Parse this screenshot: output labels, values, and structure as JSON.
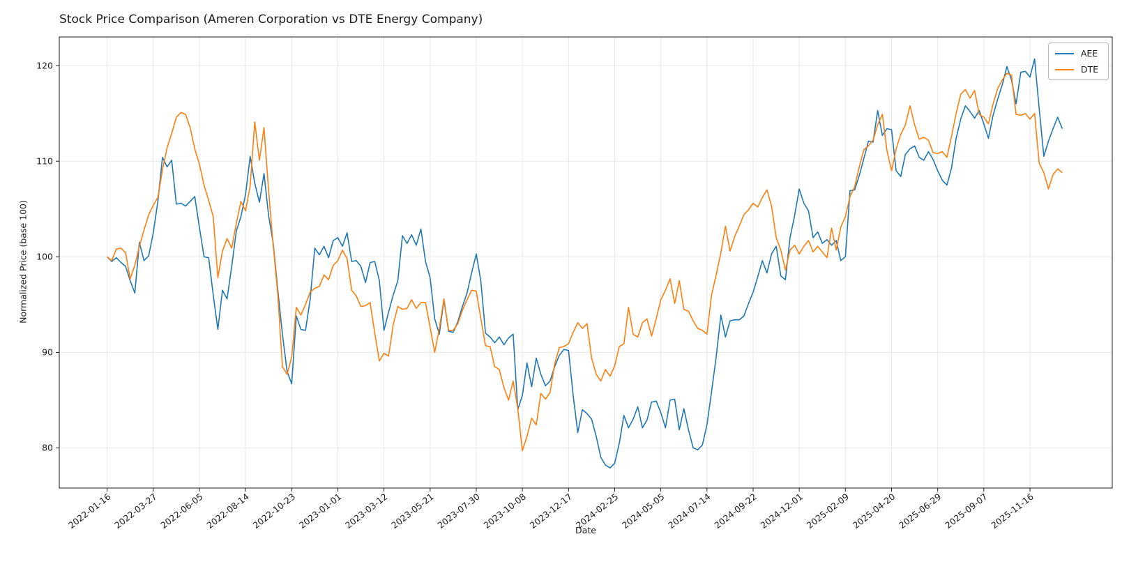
{
  "figure": {
    "title": "Stock Price Comparison (Ameren Corporation vs DTE Energy Company)",
    "xlabel": "Date",
    "ylabel": "Normalized Price (base 100)"
  },
  "chart_data": {
    "type": "line",
    "title": "Stock Price Comparison (Ameren Corporation vs DTE Energy Company)",
    "xlabel": "Date",
    "ylabel": "Normalized Price (base 100)",
    "x_start": "2022-01-16",
    "x_step_days": 7,
    "n_points": 208,
    "ylim": [
      75.8,
      123.0
    ],
    "y_tick_labels": [
      "80",
      "90",
      "100",
      "110",
      "120"
    ],
    "y_ticks": [
      80,
      90,
      100,
      110,
      120
    ],
    "x_tick_indices": [
      0,
      10,
      20,
      30,
      40,
      50,
      60,
      70,
      80,
      90,
      100,
      110,
      120,
      130,
      140,
      150,
      160,
      170,
      180,
      190,
      200
    ],
    "x_tick_labels": [
      "2022-01-16",
      "2022-03-27",
      "2022-06-05",
      "2022-08-14",
      "2022-10-23",
      "2023-01-01",
      "2023-03-12",
      "2023-05-21",
      "2023-07-30",
      "2023-10-08",
      "2023-12-17",
      "2024-02-25",
      "2024-05-05",
      "2024-07-14",
      "2024-09-22",
      "2024-12-01",
      "2025-02-09",
      "2025-04-20",
      "2025-06-29",
      "2025-09-07",
      "2025-11-16"
    ],
    "grid": true,
    "grid_color": "#e8e8e8",
    "legend_position": "upper right",
    "series": [
      {
        "name": "AEE",
        "color": "#1f77b4",
        "values": [
          100.0,
          99.5,
          99.9,
          99.4,
          99.0,
          97.5,
          96.2,
          101.5,
          99.6,
          100.1,
          102.5,
          105.8,
          110.4,
          109.4,
          110.1,
          105.5,
          105.6,
          105.3,
          105.8,
          106.3,
          103.1,
          100.0,
          99.9,
          96.0,
          92.4,
          96.5,
          95.6,
          99.0,
          102.7,
          104.2,
          106.5,
          110.5,
          107.7,
          105.7,
          108.7,
          104.3,
          101.4,
          96.5,
          91.9,
          88.0,
          86.7,
          93.8,
          92.4,
          92.3,
          95.5,
          100.9,
          100.2,
          101.1,
          99.9,
          101.7,
          102.0,
          101.1,
          102.5,
          99.5,
          99.6,
          99.0,
          97.3,
          99.4,
          99.5,
          97.5,
          92.3,
          94.2,
          96.0,
          97.5,
          102.2,
          101.4,
          102.3,
          101.2,
          102.9,
          99.5,
          97.8,
          93.5,
          91.9,
          95.5,
          92.2,
          92.1,
          93.2,
          94.8,
          96.2,
          98.3,
          100.3,
          97.4,
          92.0,
          91.6,
          91.0,
          91.6,
          90.8,
          91.5,
          91.9,
          84.0,
          85.5,
          88.9,
          86.4,
          89.4,
          87.7,
          86.5,
          87.0,
          88.5,
          89.7,
          90.3,
          90.2,
          85.5,
          81.6,
          84.0,
          83.6,
          83.0,
          81.2,
          79.0,
          78.2,
          77.9,
          78.4,
          80.5,
          83.4,
          82.1,
          83.0,
          84.3,
          82.1,
          82.9,
          84.8,
          84.9,
          83.7,
          82.1,
          85.0,
          85.1,
          81.9,
          84.1,
          81.9,
          80.0,
          79.8,
          80.3,
          82.4,
          85.9,
          89.5,
          93.9,
          91.6,
          93.3,
          93.4,
          93.4,
          93.8,
          95.1,
          96.3,
          97.9,
          99.6,
          98.3,
          100.3,
          101.1,
          98.0,
          97.6,
          102.0,
          104.3,
          107.1,
          105.6,
          104.8,
          102.0,
          102.6,
          101.4,
          101.8,
          101.2,
          101.7,
          99.6,
          100.0,
          106.9,
          107.0,
          108.5,
          110.3,
          112.1,
          112.0,
          115.3,
          112.7,
          113.4,
          113.3,
          109.0,
          108.4,
          110.7,
          111.3,
          111.6,
          110.4,
          110.1,
          111.0,
          110.2,
          109.0,
          108.0,
          107.5,
          109.3,
          112.4,
          114.4,
          115.8,
          115.2,
          114.5,
          115.3,
          113.9,
          112.4,
          114.8,
          116.5,
          118.0,
          119.9,
          118.5,
          116.0,
          119.3,
          119.4,
          118.8,
          120.7,
          115.5,
          110.5,
          112.1,
          113.4,
          114.6,
          113.4
        ]
      },
      {
        "name": "DTE",
        "color": "#ff7f0e",
        "values": [
          100.0,
          99.6,
          100.8,
          100.9,
          100.4,
          97.7,
          99.1,
          101.1,
          102.8,
          104.4,
          105.4,
          106.2,
          109.1,
          111.4,
          112.9,
          114.6,
          115.1,
          114.9,
          113.5,
          111.3,
          109.7,
          107.5,
          105.9,
          104.2,
          97.8,
          100.6,
          101.9,
          100.9,
          103.5,
          105.8,
          104.8,
          107.4,
          114.1,
          110.1,
          113.5,
          106.9,
          101.2,
          96.0,
          88.5,
          87.7,
          89.5,
          94.7,
          93.9,
          95.0,
          96.3,
          96.7,
          96.9,
          98.1,
          97.6,
          99.1,
          99.6,
          100.7,
          99.8,
          96.5,
          95.9,
          94.8,
          94.9,
          95.2,
          92.0,
          89.1,
          89.9,
          89.6,
          92.9,
          94.8,
          94.5,
          94.6,
          95.5,
          94.6,
          95.2,
          95.2,
          92.6,
          90.0,
          92.5,
          95.6,
          92.3,
          92.3,
          93.0,
          94.4,
          95.5,
          96.5,
          96.4,
          93.5,
          90.7,
          90.6,
          88.5,
          88.2,
          86.3,
          85.0,
          87.0,
          84.1,
          79.7,
          81.2,
          83.1,
          82.4,
          85.7,
          85.1,
          85.8,
          88.8,
          90.5,
          90.6,
          90.9,
          92.1,
          93.1,
          92.5,
          93.0,
          89.4,
          87.7,
          87.0,
          88.2,
          87.5,
          88.6,
          90.6,
          90.9,
          94.7,
          91.9,
          91.6,
          93.1,
          93.5,
          91.7,
          93.5,
          95.5,
          96.5,
          97.7,
          95.1,
          97.5,
          94.5,
          94.3,
          93.3,
          92.5,
          92.3,
          91.9,
          96.0,
          98.1,
          100.4,
          103.2,
          100.6,
          102.1,
          103.2,
          104.4,
          104.9,
          105.6,
          105.2,
          106.2,
          107.0,
          105.3,
          102.0,
          100.7,
          98.6,
          100.7,
          101.2,
          100.3,
          101.1,
          101.7,
          100.5,
          101.1,
          100.5,
          99.9,
          103.0,
          100.7,
          103.1,
          104.2,
          106.3,
          107.3,
          109.4,
          111.2,
          111.6,
          112.2,
          113.8,
          114.9,
          111.1,
          109.0,
          111.3,
          112.8,
          113.8,
          115.8,
          113.8,
          112.3,
          112.5,
          112.2,
          110.9,
          110.8,
          111.0,
          110.4,
          112.6,
          115.0,
          117.0,
          117.5,
          116.6,
          117.4,
          114.9,
          114.6,
          113.9,
          116.0,
          117.6,
          118.5,
          119.2,
          119.0,
          114.9,
          114.8,
          115.0,
          114.4,
          115.0,
          109.8,
          108.8,
          107.1,
          108.6,
          109.2,
          108.8
        ]
      }
    ]
  }
}
